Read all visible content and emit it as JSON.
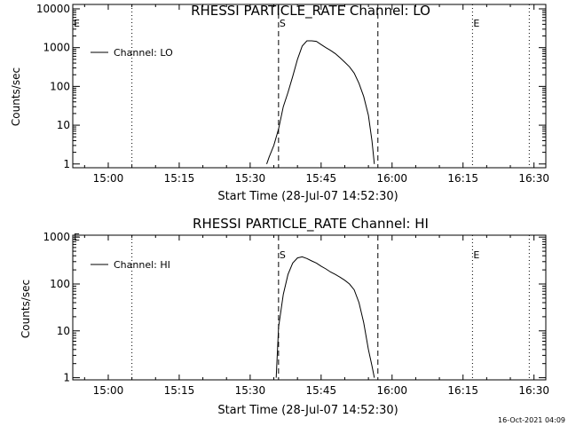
{
  "footer": {
    "timestamp": "16-Oct-2021 04:09"
  },
  "chart_data": [
    {
      "type": "line",
      "title": "RHESSI PARTICLE_RATE Channel: LO",
      "xlabel": "Start Time (28-Jul-07 14:52:30)",
      "ylabel": "Counts/sec",
      "x_ticks": [
        "15:00",
        "15:15",
        "15:30",
        "15:45",
        "16:00",
        "16:15",
        "16:30"
      ],
      "y_ticks": [
        "1",
        "10",
        "100",
        "1000",
        "10000"
      ],
      "yscale": "log",
      "xlim": [
        "14:52:30",
        "16:32:30"
      ],
      "ylim": [
        0.8,
        13000
      ],
      "grid": false,
      "legend": {
        "position": "top-left",
        "label": "Channel: LO"
      },
      "markers": [
        {
          "time": "15:05",
          "style": "dotted",
          "label": ""
        },
        {
          "time": "15:36",
          "style": "dashed",
          "label": "S"
        },
        {
          "time": "15:57",
          "style": "dashed",
          "label": ""
        },
        {
          "time": "16:17",
          "style": "dotted",
          "label": "E"
        },
        {
          "time": "16:29",
          "style": "dotted",
          "label": ""
        }
      ],
      "corner_label": "E",
      "series": [
        {
          "name": "Channel: LO",
          "x": [
            "15:33:30",
            "15:34:00",
            "15:35:00",
            "15:36:00",
            "15:37:00",
            "15:38:00",
            "15:39:00",
            "15:40:00",
            "15:41:00",
            "15:42:00",
            "15:43:00",
            "15:44:00",
            "15:45:00",
            "15:46:00",
            "15:47:00",
            "15:48:00",
            "15:49:00",
            "15:50:00",
            "15:51:00",
            "15:52:00",
            "15:53:00",
            "15:54:00",
            "15:55:00",
            "15:55:45",
            "15:56:15"
          ],
          "y": [
            1,
            1.5,
            3,
            8,
            30,
            70,
            180,
            500,
            1100,
            1500,
            1500,
            1450,
            1200,
            1000,
            850,
            700,
            550,
            420,
            320,
            220,
            120,
            55,
            18,
            4,
            1
          ]
        }
      ]
    },
    {
      "type": "line",
      "title": "RHESSI PARTICLE_RATE Channel: HI",
      "xlabel": "Start Time (28-Jul-07 14:52:30)",
      "ylabel": "Counts/sec",
      "x_ticks": [
        "15:00",
        "15:15",
        "15:30",
        "15:45",
        "16:00",
        "16:15",
        "16:30"
      ],
      "y_ticks": [
        "1",
        "10",
        "100",
        "1000"
      ],
      "yscale": "log",
      "xlim": [
        "14:52:30",
        "16:32:30"
      ],
      "ylim": [
        0.9,
        1100
      ],
      "grid": false,
      "legend": {
        "position": "top-left",
        "label": "Channel: HI"
      },
      "markers": [
        {
          "time": "15:05",
          "style": "dotted",
          "label": ""
        },
        {
          "time": "15:36",
          "style": "dashed",
          "label": "S"
        },
        {
          "time": "15:57",
          "style": "dashed",
          "label": ""
        },
        {
          "time": "16:17",
          "style": "dotted",
          "label": "E"
        },
        {
          "time": "16:29",
          "style": "dotted",
          "label": ""
        }
      ],
      "corner_label": "E",
      "series": [
        {
          "name": "Channel: HI",
          "x": [
            "15:35:30",
            "15:36:00",
            "15:37:00",
            "15:38:00",
            "15:39:00",
            "15:40:00",
            "15:41:00",
            "15:42:00",
            "15:43:00",
            "15:44:00",
            "15:45:00",
            "15:46:00",
            "15:47:00",
            "15:48:00",
            "15:49:00",
            "15:50:00",
            "15:51:00",
            "15:52:00",
            "15:53:00",
            "15:54:00",
            "15:55:00",
            "15:55:45",
            "15:56:15"
          ],
          "y": [
            1,
            12,
            60,
            160,
            280,
            360,
            380,
            350,
            310,
            280,
            240,
            210,
            180,
            160,
            140,
            120,
            100,
            75,
            40,
            15,
            4,
            1.8,
            1
          ]
        }
      ]
    }
  ]
}
